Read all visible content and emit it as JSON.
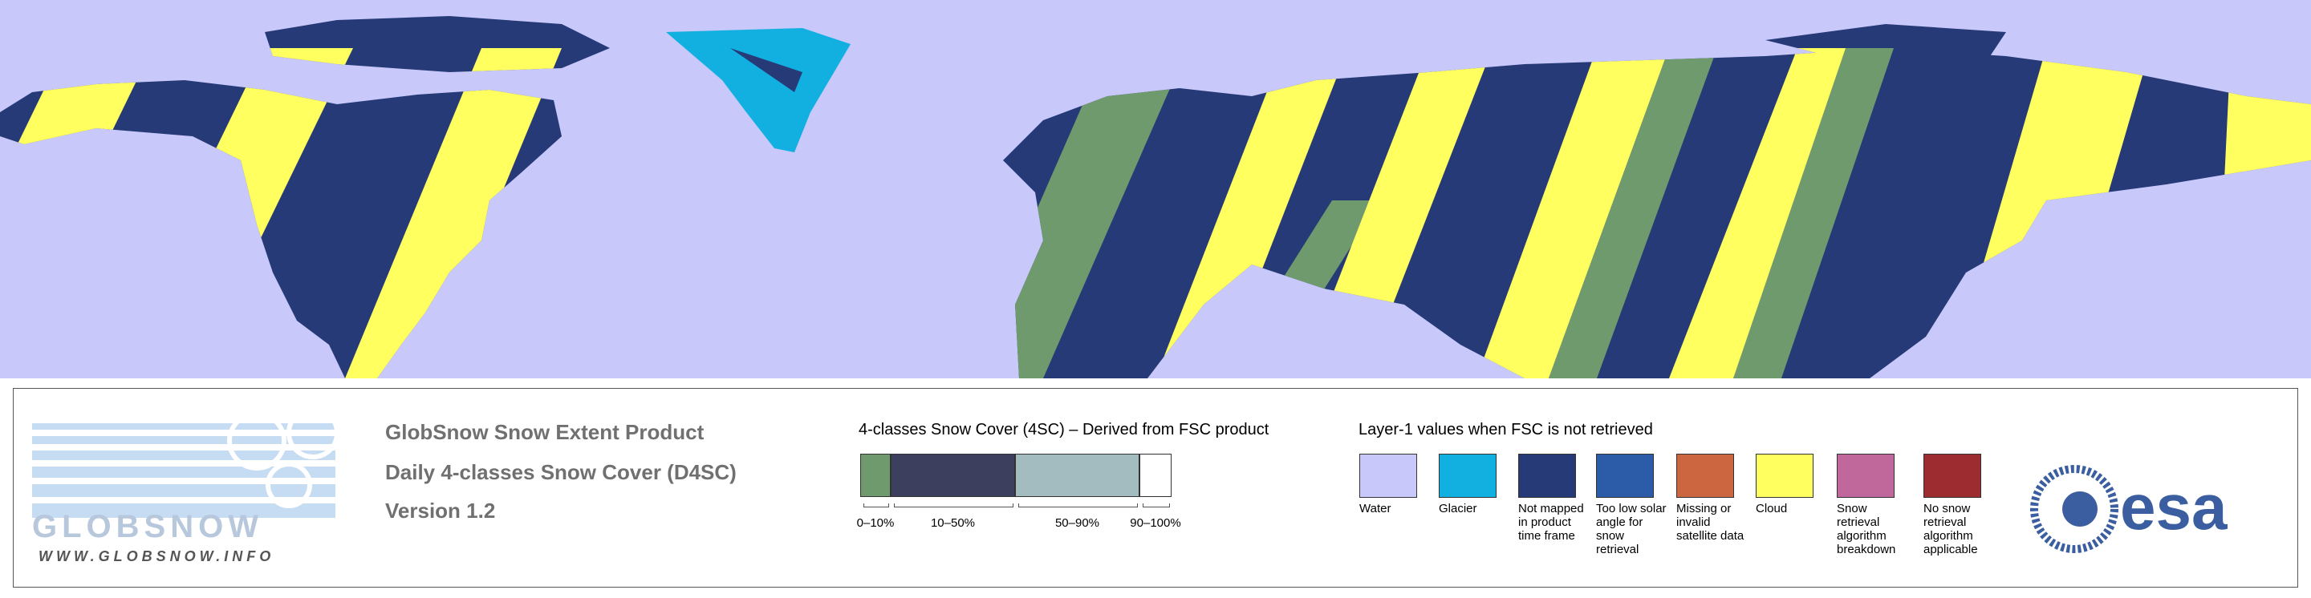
{
  "logo": {
    "wordmark": "GLOBSNOW",
    "url": "WWW.GLOBSNOW.INFO"
  },
  "product": {
    "title": "GlobSnow Snow Extent Product",
    "subtitle": "Daily 4-classes Snow Cover (D4SC)",
    "version": "Version 1.2"
  },
  "scale": {
    "title": "4-classes Snow Cover (4SC) – Derived from FSC product",
    "classes": [
      {
        "label": "0–10%",
        "color": "#6f9a6d"
      },
      {
        "label": "10–50%",
        "color": "#3d3f5e"
      },
      {
        "label": "50–90%",
        "color": "#a3bcc0"
      },
      {
        "label": "90–100%",
        "color": "#ffffff"
      }
    ]
  },
  "layer_legend": {
    "title": "Layer-1 values when FSC is not retrieved",
    "items": [
      {
        "label": "Water",
        "color": "#c8c8fa"
      },
      {
        "label": "Glacier",
        "color": "#12b0e0"
      },
      {
        "label": "Not mapped in product time frame",
        "color": "#263a78"
      },
      {
        "label": "Too low solar angle for snow retrieval",
        "color": "#2c5ca8"
      },
      {
        "label": "Missing or invalid satellite data",
        "color": "#cc6640"
      },
      {
        "label": "Cloud",
        "color": "#ffff60"
      },
      {
        "label": "Snow retrieval algorithm breakdown",
        "color": "#c0689c"
      },
      {
        "label": "No snow retrieval algorithm applicable",
        "color": "#9c2c30"
      }
    ]
  },
  "agency": "esa"
}
